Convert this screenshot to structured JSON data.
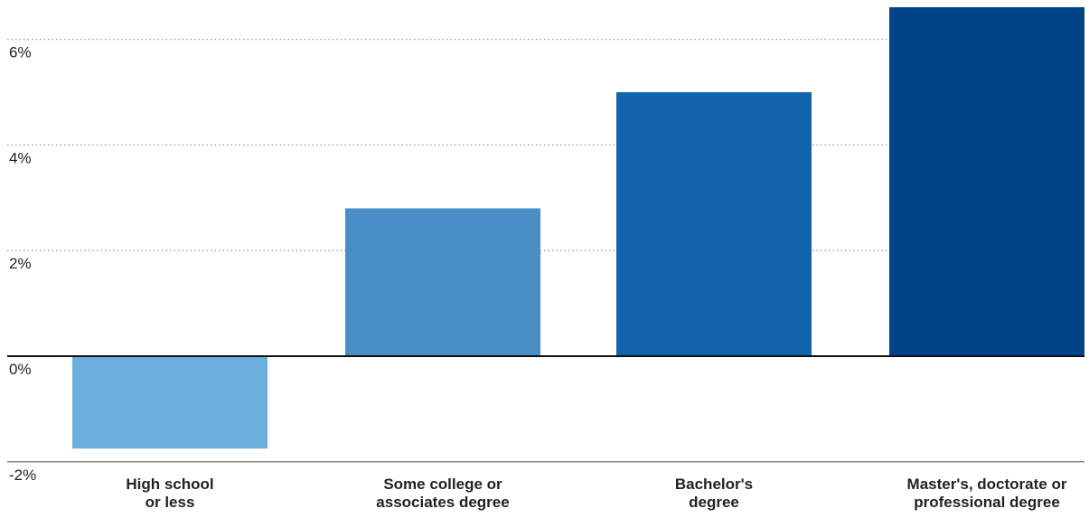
{
  "chart_data": {
    "type": "bar",
    "title": "",
    "xlabel": "",
    "ylabel": "",
    "categories": [
      [
        "High school",
        "or less"
      ],
      [
        "Some college or",
        "associates degree"
      ],
      [
        "Bachelor's",
        "degree"
      ],
      [
        "Master's, doctorate or",
        "professional degree"
      ]
    ],
    "values": [
      -1.75,
      2.8,
      5.0,
      6.7
    ],
    "colors": [
      "#6aaedb",
      "#4a8ec8",
      "#1265ad",
      "#004387"
    ],
    "ylim": [
      -2,
      6.6
    ],
    "yticks": [
      {
        "value": 6,
        "label": "6%"
      },
      {
        "value": 4,
        "label": "4%"
      },
      {
        "value": 2,
        "label": "2%"
      },
      {
        "value": 0,
        "label": "0%"
      },
      {
        "value": -2,
        "label": "-2%"
      }
    ],
    "grid": "dotted horizontal",
    "legend": "none"
  }
}
